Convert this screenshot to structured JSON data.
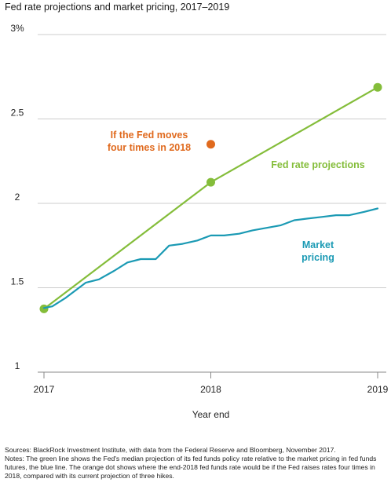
{
  "chart_data": {
    "type": "line",
    "title": "Fed rate projections and market pricing, 2017–2019",
    "xlabel": "Year end",
    "ylabel": "",
    "xlim": [
      2017,
      2019
    ],
    "ylim": [
      1,
      3
    ],
    "x_ticks": [
      "2017",
      "2018",
      "2019"
    ],
    "y_ticks": [
      "1",
      "1.5",
      "2",
      "2.5",
      "3%"
    ],
    "grid": "horizontal",
    "colors": {
      "projection": "#84bd3a",
      "market": "#1b9ab4",
      "orange": "#e06a1e",
      "grid": "#cccccc"
    },
    "series": [
      {
        "name": "Fed rate projections",
        "key": "projection",
        "x": [
          2017,
          2018,
          2019
        ],
        "values": [
          1.375,
          2.125,
          2.6875
        ],
        "markers": true
      },
      {
        "name": "Market pricing",
        "key": "market",
        "x": [
          2017,
          2017.05,
          2017.13,
          2017.25,
          2017.33,
          2017.42,
          2017.5,
          2017.58,
          2017.67,
          2017.75,
          2017.83,
          2017.92,
          2018,
          2018.08,
          2018.17,
          2018.25,
          2018.42,
          2018.5,
          2018.58,
          2018.67,
          2018.75,
          2018.83,
          2018.92,
          2019
        ],
        "values": [
          1.38,
          1.39,
          1.44,
          1.53,
          1.55,
          1.6,
          1.65,
          1.67,
          1.67,
          1.75,
          1.76,
          1.78,
          1.81,
          1.81,
          1.82,
          1.84,
          1.87,
          1.9,
          1.91,
          1.92,
          1.93,
          1.93,
          1.95,
          1.97
        ],
        "markers": false
      }
    ],
    "annotations": [
      {
        "text": "If the Fed moves\nfour times in 2018",
        "x": 2018,
        "y": 2.35,
        "color_key": "orange"
      },
      {
        "text": "Fed rate projections",
        "color_key": "projection"
      },
      {
        "text": "Market\npricing",
        "color_key": "market"
      }
    ]
  },
  "notes": {
    "sources": "Sources: BlackRock Investment Institute, with data from the Federal Reserve and Bloomberg, November 2017.",
    "notes": "Notes: The green line shows the Fed's median projection of its fed funds policy rate relative to the market pricing in fed funds futures, the blue line. The orange dot shows where the end-2018 fed funds rate would be if the Fed raises rates four times in 2018, compared with its current projection of three hikes."
  }
}
